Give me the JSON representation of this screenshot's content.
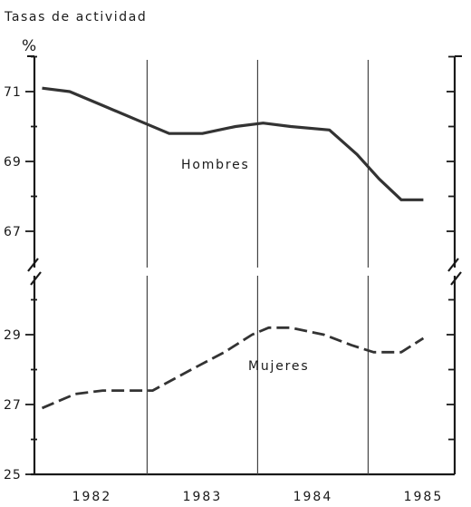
{
  "chart_data": {
    "type": "line",
    "title": "Tasas de actividad",
    "ylabel": "%",
    "xlabel": "",
    "x_tick_labels": [
      "1982",
      "1983",
      "1984",
      "1985"
    ],
    "broken_y_axis": true,
    "grid": "vertical lines at year boundaries",
    "panels": [
      {
        "name": "upper",
        "ylim": [
          65,
          72
        ],
        "y_tick_labels": [
          "71",
          "69",
          "67"
        ],
        "y_ticks": [
          71,
          69,
          67
        ]
      },
      {
        "name": "lower",
        "ylim": [
          25,
          30.5
        ],
        "y_tick_labels": [
          "29",
          "27",
          "25"
        ],
        "y_ticks": [
          29,
          27,
          25
        ]
      }
    ],
    "series": [
      {
        "name": "Hombres",
        "panel": "upper",
        "line_style": "solid",
        "color": "#333333",
        "x": [
          1981.55,
          1981.8,
          1982.1,
          1982.4,
          1982.7,
          1983.0,
          1983.3,
          1983.55,
          1983.8,
          1984.15,
          1984.4,
          1984.6,
          1984.8,
          1985.0
        ],
        "y": [
          71.1,
          71.0,
          70.6,
          70.2,
          69.8,
          69.8,
          70.0,
          70.1,
          70.0,
          69.9,
          69.2,
          68.5,
          67.9,
          67.9
        ]
      },
      {
        "name": "Mujeres",
        "panel": "lower",
        "line_style": "dashed",
        "color": "#333333",
        "x": [
          1981.55,
          1981.85,
          1982.1,
          1982.4,
          1982.55,
          1982.9,
          1983.2,
          1983.45,
          1983.6,
          1983.8,
          1984.1,
          1984.35,
          1984.55,
          1984.8,
          1985.0
        ],
        "y": [
          26.9,
          27.3,
          27.4,
          27.4,
          27.4,
          28.0,
          28.5,
          29.0,
          29.2,
          29.2,
          29.0,
          28.7,
          28.5,
          28.5,
          28.9
        ]
      }
    ]
  }
}
